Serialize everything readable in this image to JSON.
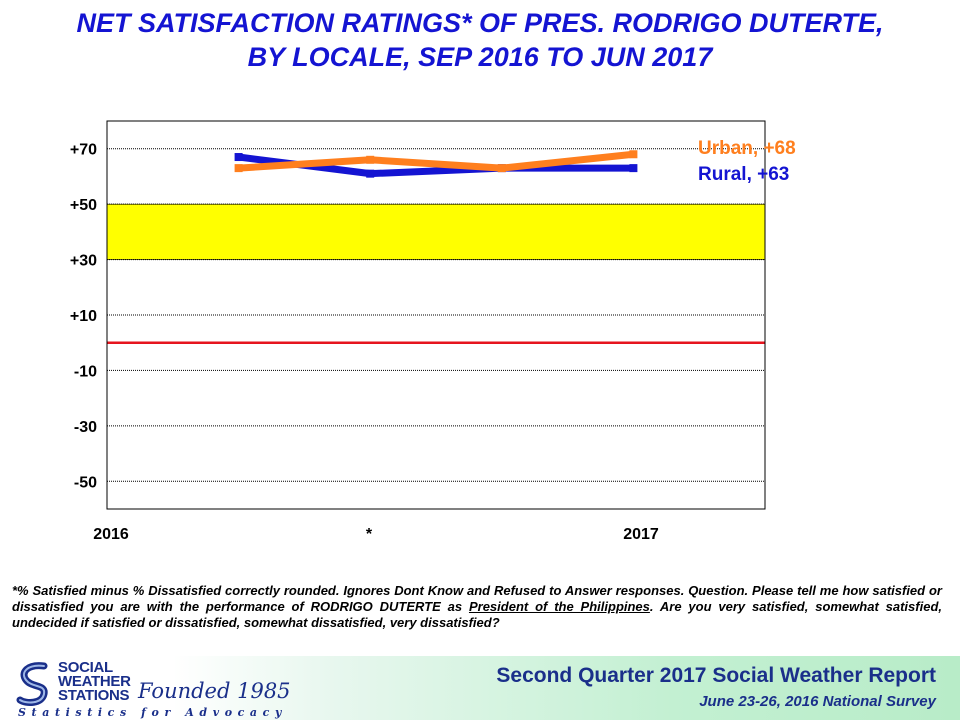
{
  "title_line1": "NET SATISFACTION RATINGS* OF PRES. RODRIGO DUTERTE,",
  "title_line2": "BY LOCALE, SEP 2016 TO JUN 2017",
  "colors": {
    "title": "#1414d2",
    "rural": "#1414d2",
    "urban": "#ff7f1e",
    "band": "#ffff00",
    "zero_line": "#e6141e",
    "footer_text": "#1a2f8a"
  },
  "chart_data": {
    "type": "line",
    "x_tick_labels": [
      "2016",
      "*",
      "2017"
    ],
    "y_tick_labels": [
      "+70",
      "+50",
      "+30",
      "+10",
      "-10",
      "-30",
      "-50"
    ],
    "y_ticks": [
      70,
      50,
      30,
      10,
      -10,
      -30,
      -50
    ],
    "ylim": [
      -60,
      80
    ],
    "xlim": [
      0,
      5
    ],
    "grid": true,
    "highlight_band": [
      30,
      50
    ],
    "reference_line": 0,
    "series": [
      {
        "name": "Rural",
        "end_label": "Rural, +63",
        "x": [
          1,
          2,
          3,
          4
        ],
        "values": [
          67,
          61,
          63,
          63
        ]
      },
      {
        "name": "Urban",
        "end_label": "Urban, +68",
        "x": [
          1,
          2,
          3,
          4
        ],
        "values": [
          63,
          66,
          63,
          68
        ]
      }
    ]
  },
  "footnote": {
    "line1": "*% Satisfied minus % Dissatisfied correctly rounded. Ignores Dont Know and Refused to Answer responses. Question. Please tell me how satisfied or dissatisfied you are with the performance of RODRIGO DUTERTE as ",
    "underlined": "President of the Philippines",
    "line2": ". Are you very satisfied, somewhat satisfied, undecided if satisfied or dissatisfied, somewhat dissatisfied, very dissatisfied?"
  },
  "footer": {
    "logo_line1": "SOCIAL",
    "logo_line2": "WEATHER",
    "logo_line3": "STATIONS",
    "founded": "Founded 1985",
    "tagline": "Statistics for Advocacy",
    "report_title": "Second Quarter 2017 Social Weather Report",
    "report_subtitle": "June 23-26, 2016 National Survey"
  }
}
